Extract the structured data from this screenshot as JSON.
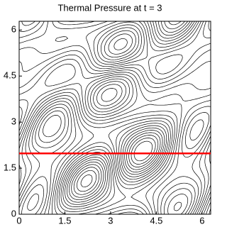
{
  "chart_data": {
    "type": "contour",
    "title": "Thermal Pressure at t = 3",
    "xlim": [
      0,
      6.2832
    ],
    "ylim": [
      0,
      6.2832
    ],
    "xticks": [
      0,
      1.5,
      3,
      4.5,
      6
    ],
    "yticks": [
      0,
      1.5,
      3,
      4.5,
      6
    ],
    "hline": {
      "value": 1.98,
      "color": "#ff0000"
    },
    "line_color": "#000000"
  }
}
